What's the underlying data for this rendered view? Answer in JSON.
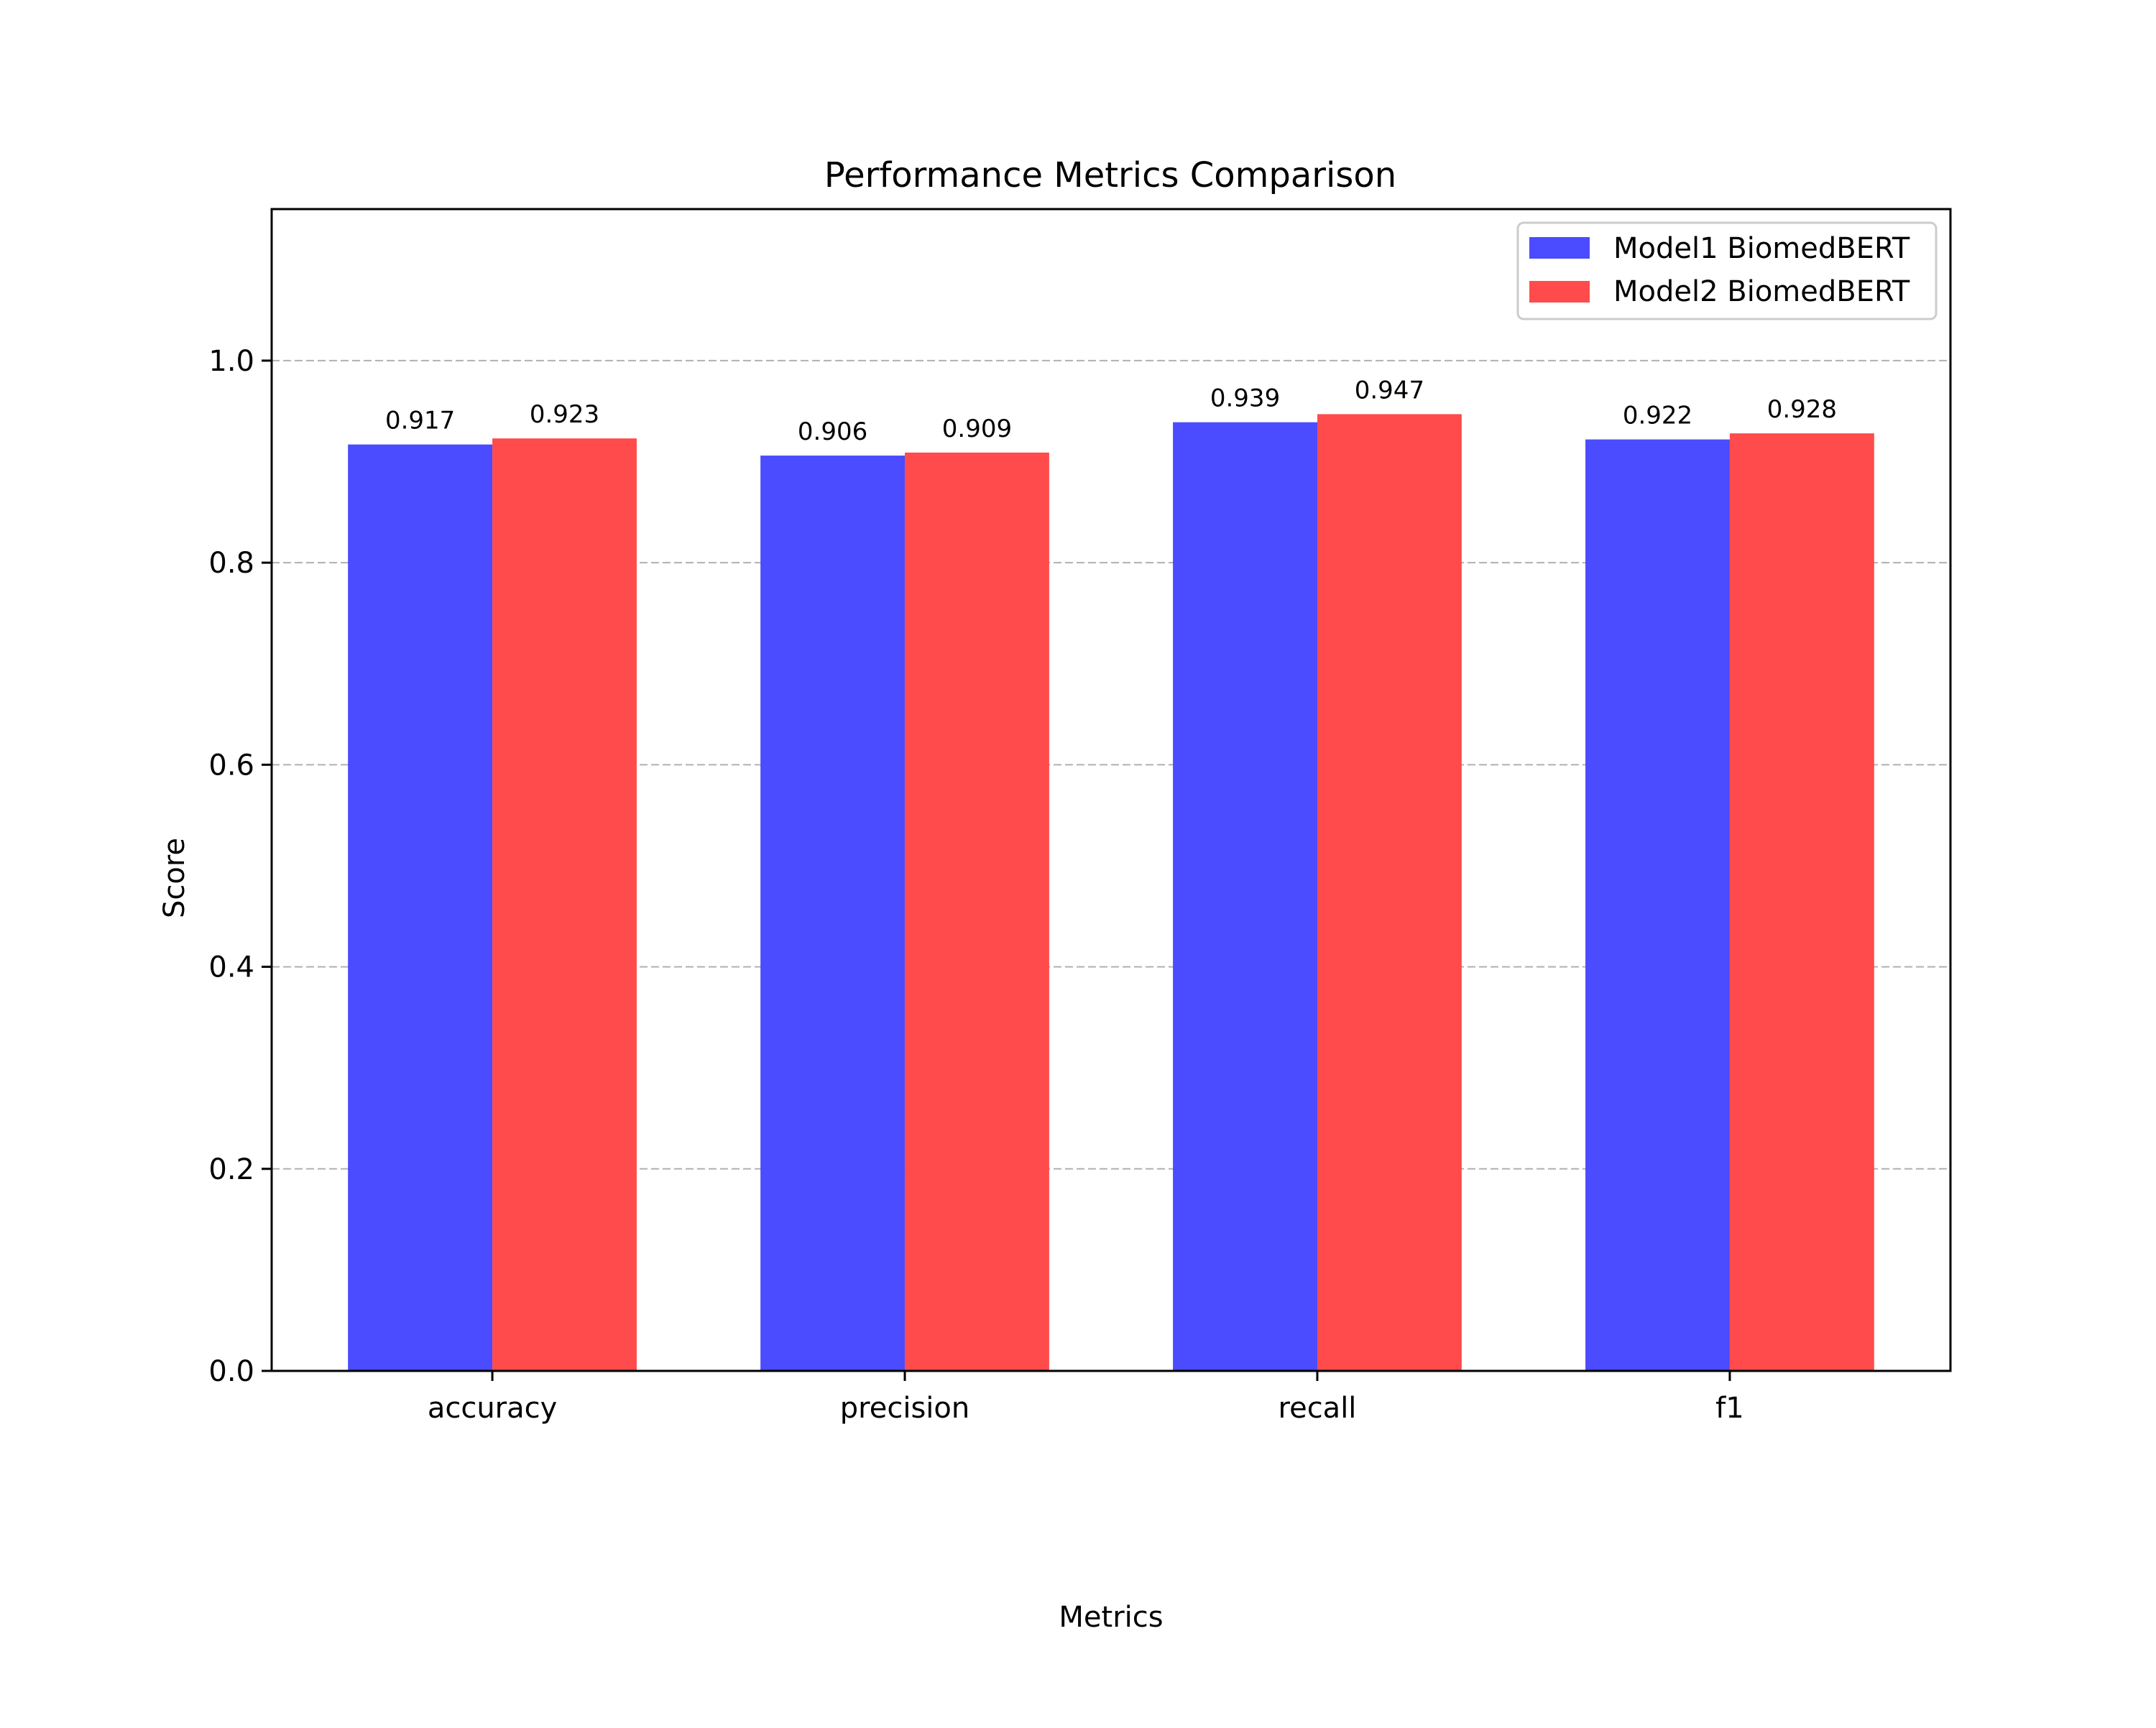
{
  "chart_data": {
    "type": "bar",
    "title": "Performance Metrics Comparison",
    "xlabel": "Metrics",
    "ylabel": "Score",
    "categories": [
      "accuracy",
      "precision",
      "recall",
      "f1"
    ],
    "series": [
      {
        "name": "Model1 BiomedBERT",
        "color": "#4b4bff",
        "values": [
          0.917,
          0.906,
          0.939,
          0.922
        ],
        "labels": [
          "0.917",
          "0.906",
          "0.939",
          "0.922"
        ]
      },
      {
        "name": "Model2 BiomedBERT",
        "color": "#ff4b4b",
        "values": [
          0.923,
          0.909,
          0.947,
          0.928
        ],
        "labels": [
          "0.923",
          "0.909",
          "0.947",
          "0.928"
        ]
      }
    ],
    "ylim": [
      0,
      1.15
    ],
    "yticks": [
      0.0,
      0.2,
      0.4,
      0.6,
      0.8,
      1.0
    ],
    "ytick_labels": [
      "0.0",
      "0.2",
      "0.4",
      "0.6",
      "0.8",
      "1.0"
    ],
    "grid": "y-dashed",
    "legend_position": "top-right"
  }
}
